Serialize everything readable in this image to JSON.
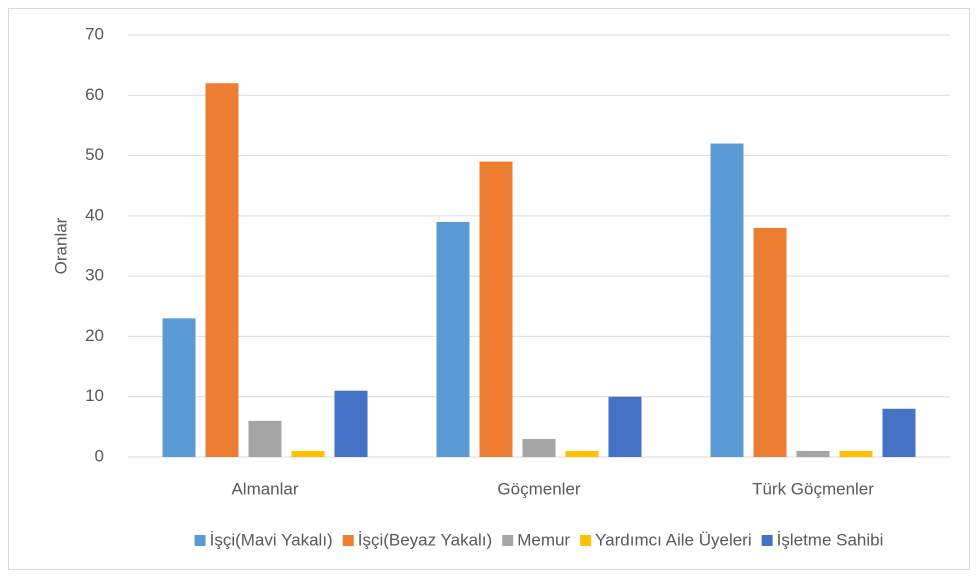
{
  "chart_data": {
    "type": "bar",
    "y_label": "Oranlar",
    "categories": [
      "Almanlar",
      "Göçmenler",
      "Türk Göçmenler"
    ],
    "series": [
      {
        "name": "İşçi(Mavi Yakalı)",
        "color": "#5b9bd5",
        "values": [
          23,
          39,
          52
        ]
      },
      {
        "name": "İşçi(Beyaz Yakalı)",
        "color": "#ed7d31",
        "values": [
          62,
          49,
          38
        ]
      },
      {
        "name": "Memur",
        "color": "#a5a5a5",
        "values": [
          6,
          3,
          1
        ]
      },
      {
        "name": "Yardımcı Aile Üyeleri",
        "color": "#ffc000",
        "values": [
          1,
          1,
          1
        ]
      },
      {
        "name": "İşletme Sahibi",
        "color": "#4472c4",
        "values": [
          11,
          10,
          8
        ]
      }
    ],
    "ylim": [
      0,
      70
    ],
    "yticks": [
      0,
      10,
      20,
      30,
      40,
      50,
      60,
      70
    ],
    "grid": true,
    "legend": "bottom"
  }
}
